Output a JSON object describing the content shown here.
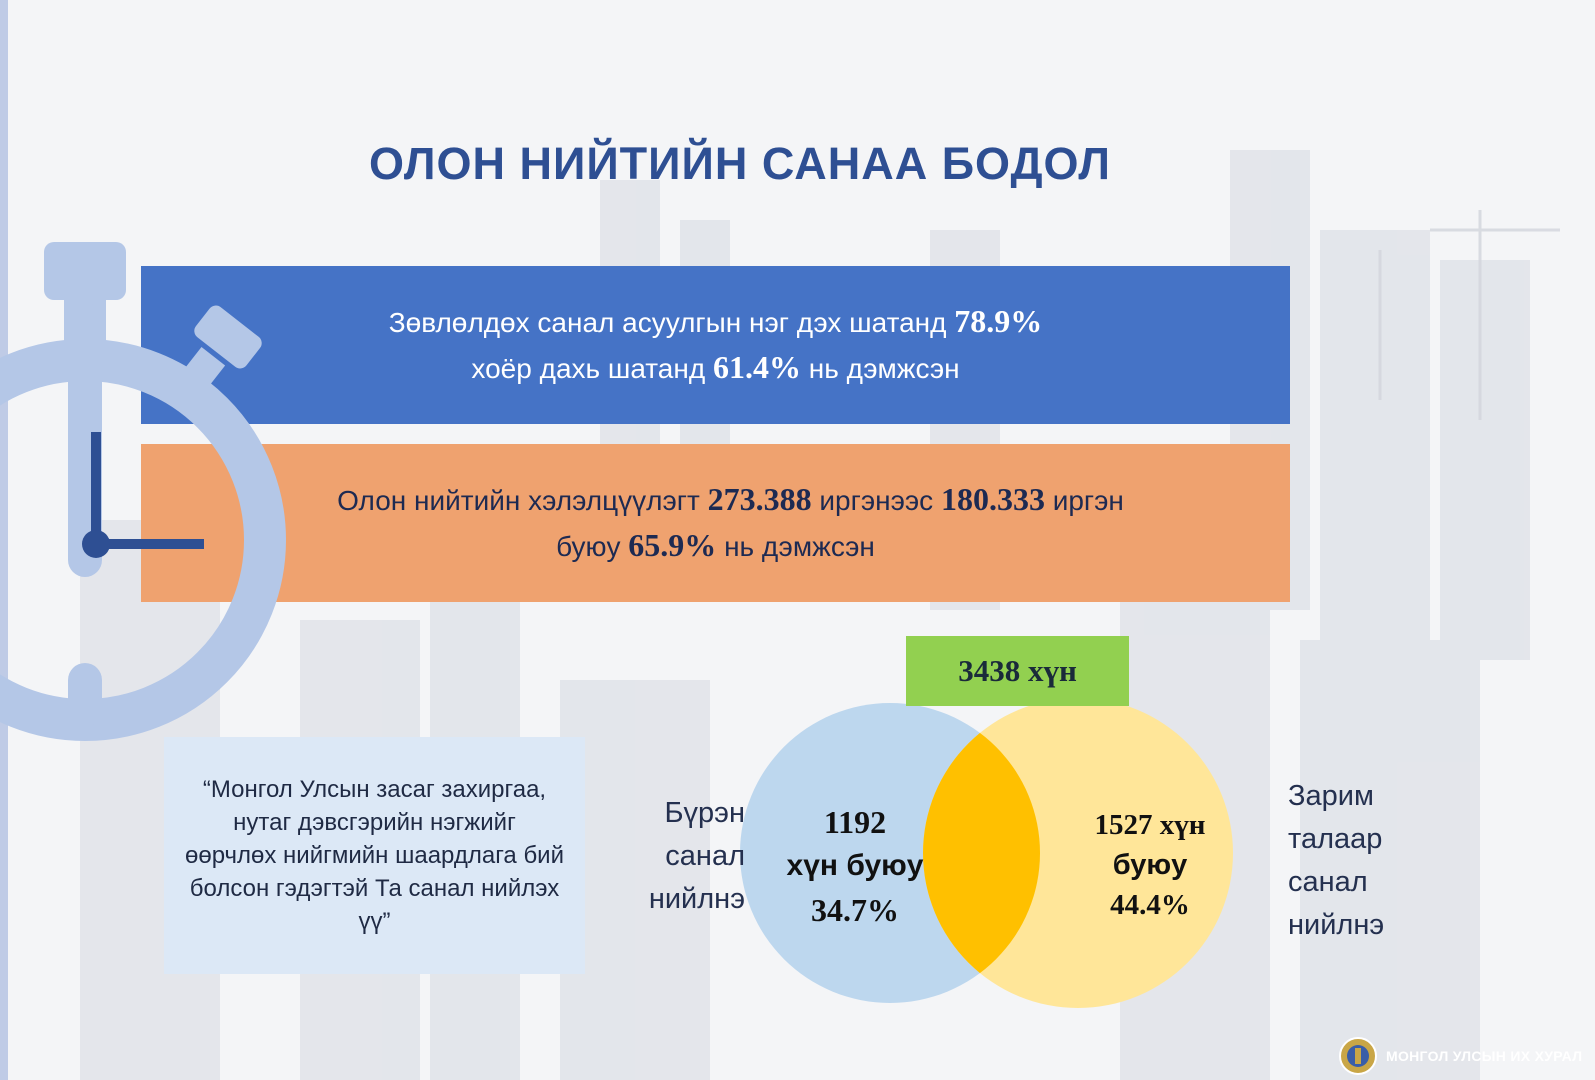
{
  "title": "ОЛОН НИЙТИЙН САНАА БОДОЛ",
  "band_blue": {
    "line1_text": "Зөвлөлдөх санал асуулгын нэг дэх шатанд",
    "line1_value": "78.9%",
    "line2_text": "хоёр дахь шатанд",
    "line2_value": "61.4%",
    "line2_suffix": "нь дэмжсэн"
  },
  "band_orange": {
    "line1_text": "Олон нийтийн хэлэлцүүлэгт",
    "line1_value1": "273.388",
    "line1_mid": "иргэнээс",
    "line1_value2": "180.333",
    "line1_suffix": "иргэн",
    "line2_text": "буюу",
    "line2_value": "65.9%",
    "line2_suffix": "нь дэмжсэн"
  },
  "quote": "“Монгол Улсын засаг захиргаа, нутаг дэвсгэрийн нэгжийг өөрчлөх нийгмийн шаардлага бий болсон гэдэгтэй Та санал нийлэх үү”",
  "venn": {
    "total": "3438 хүн",
    "left": {
      "count": "1192",
      "unit": "хүн буюу",
      "percent": "34.7%",
      "label_lines": [
        "Бүрэн",
        "санал",
        "нийлнэ"
      ]
    },
    "right": {
      "count": "1527 хүн",
      "unit": "буюу",
      "percent": "44.4%",
      "label_lines": [
        "Зарим",
        "талаар",
        "санал",
        "нийлнэ"
      ]
    },
    "colors": {
      "left": "#bdd7ee",
      "right": "#ffe699",
      "overlap": "#ffc000",
      "total_box": "#92d050"
    }
  },
  "footer": "МОНГОЛ УЛСЫН ИХ ХУРАЛ",
  "colors": {
    "title": "#2e4f93",
    "band_blue": "#4573c6",
    "band_orange": "#efa26f",
    "quote_bg": "#dce8f6"
  }
}
